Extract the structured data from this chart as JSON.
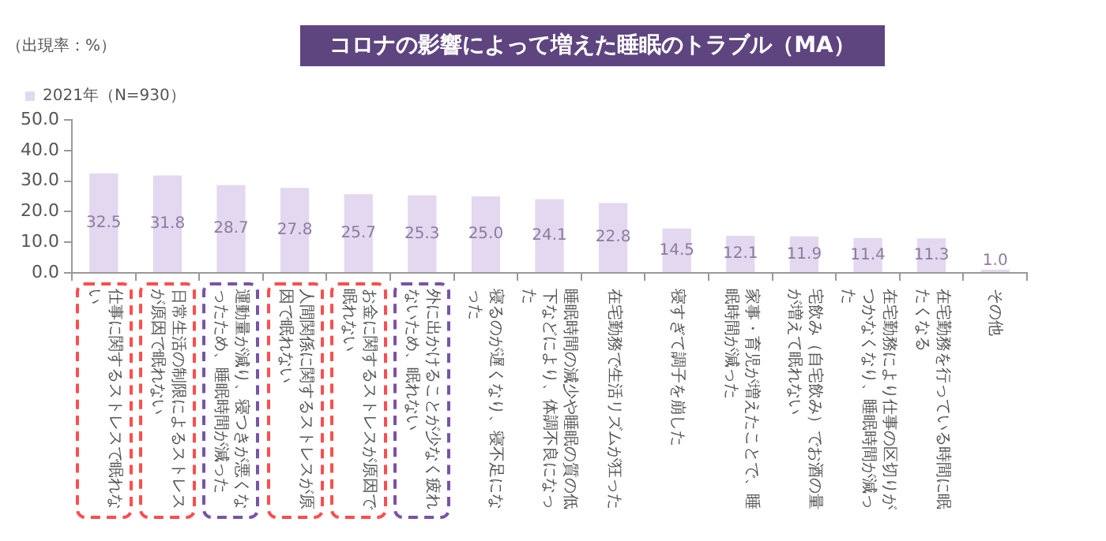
{
  "chart_data": {
    "type": "bar",
    "title": "コロナの影響によって増えた睡眠のトラブル（MA）",
    "ylabel": "（出現率：%）",
    "categories": [
      "仕事に関するストレスで眠れない",
      "日常生活の制限によるストレスが原因で眠れない",
      "運動量が減り、寝つきが悪くなったため、睡眠時間が減った",
      "人間関係に関するストレスが原因で眠れない",
      "お金に関するストレスが原因で眠れない",
      "外に出かけることが少なく疲れないため、眠れない",
      "寝るのが遅くなり、寝不足になった",
      "睡眠時間の減少や睡眠の質の低下などにより、体調不良になった",
      "在宅勤務で生活リズムが狂った",
      "寝すぎて調子を崩した",
      "家事・育児が増えたことで、睡眠時間が減った",
      "宅飲み（自宅飲み）でお酒の量が増えて眠れない",
      "在宅勤務により仕事の区切りがつかなくなり、睡眠時間が減った",
      "在宅勤務を行っている時間に眠たくなる",
      "その他"
    ],
    "series": [
      {
        "name": "2021年（N=930）",
        "color": "#e4d7f0",
        "values": [
          32.5,
          31.8,
          28.7,
          27.8,
          25.7,
          25.3,
          25.0,
          24.1,
          22.8,
          14.5,
          12.1,
          11.9,
          11.4,
          11.3,
          1.0
        ],
        "value_labels": [
          "32.5",
          "31.8",
          "28.7",
          "27.8",
          "25.7",
          "25.3",
          "25.0",
          "24.1",
          "22.8",
          "14.5",
          "12.1",
          "11.9",
          "11.4",
          "11.3",
          "1.0"
        ]
      }
    ],
    "ylim": [
      0,
      50
    ],
    "yticks": [
      {
        "value": 0,
        "label": "0.0"
      },
      {
        "value": 10,
        "label": "10.0"
      },
      {
        "value": 20,
        "label": "20.0"
      },
      {
        "value": 30,
        "label": "30.0"
      },
      {
        "value": 40,
        "label": "40.0"
      },
      {
        "value": 50,
        "label": "50.0"
      }
    ],
    "grid": false,
    "legend": "top left"
  }
}
